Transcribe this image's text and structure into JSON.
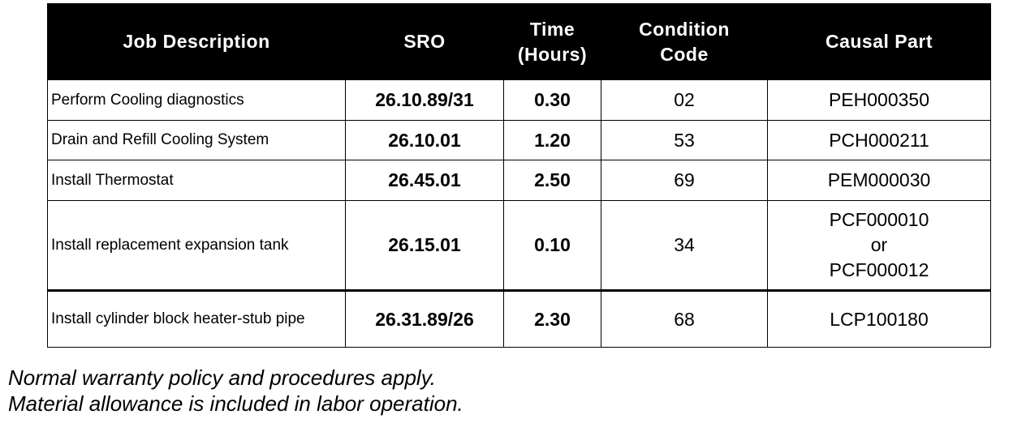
{
  "table": {
    "headers": [
      [
        "Job Description"
      ],
      [
        "SRO"
      ],
      [
        "Time",
        "(Hours)"
      ],
      [
        "Condition",
        "Code"
      ],
      [
        "Causal Part"
      ]
    ],
    "rows": [
      [
        "Perform Cooling diagnostics",
        "26.10.89/31",
        "0.30",
        "02",
        [
          "PEH000350"
        ]
      ],
      [
        "Drain and Refill Cooling System",
        "26.10.01",
        "1.20",
        "53",
        [
          "PCH000211"
        ]
      ],
      [
        "Install Thermostat",
        "26.45.01",
        "2.50",
        "69",
        [
          "PEM000030"
        ]
      ],
      [
        "Install replacement expansion tank",
        "26.15.01",
        "0.10",
        "34",
        [
          "PCF000010",
          "or",
          "PCF000012"
        ]
      ],
      [
        "Install cylinder block heater-stub pipe",
        "26.31.89/26",
        "2.30",
        "68",
        [
          "LCP100180"
        ]
      ]
    ]
  },
  "notes": [
    "Normal warranty policy and procedures apply.",
    "Material allowance is included in labor operation."
  ]
}
